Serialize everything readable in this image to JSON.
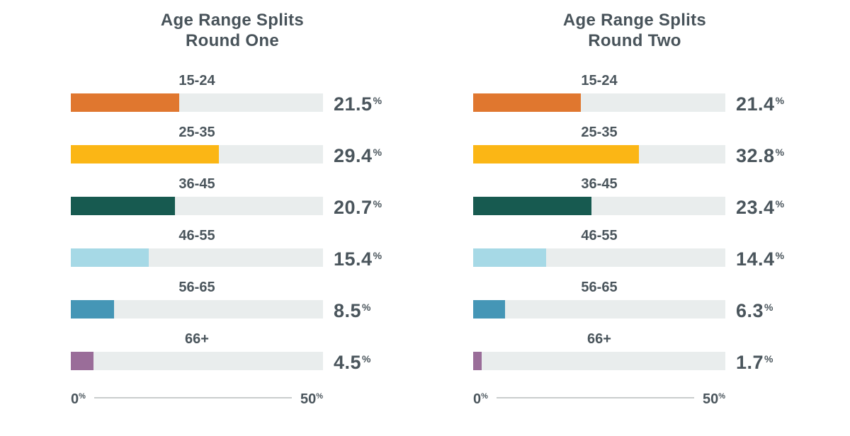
{
  "units": {
    "percent": "%"
  },
  "palette": {
    "text": "#48535A",
    "track": "#E9EDED",
    "axis_line": "#C9CDCD",
    "background": "#FFFFFF"
  },
  "chart_data": [
    {
      "type": "bar",
      "orientation": "horizontal",
      "title": "Age Range Splits",
      "subtitle": "Round One",
      "xlim": [
        0,
        50
      ],
      "grid": false,
      "categories": [
        "15-24",
        "25-35",
        "36-45",
        "46-55",
        "56-65",
        "66+"
      ],
      "values": [
        21.5,
        29.4,
        20.7,
        15.4,
        8.5,
        4.5
      ],
      "value_labels": [
        "21.5",
        "29.4",
        "20.7",
        "15.4",
        "8.5",
        "4.5"
      ],
      "bar_colors": [
        "#E0772F",
        "#FBB615",
        "#175A50",
        "#A6D9E6",
        "#4596B6",
        "#9A6D99"
      ],
      "track_color": "#E9EDED",
      "axis": {
        "min": "0",
        "max": "50",
        "unit": "%"
      }
    },
    {
      "type": "bar",
      "orientation": "horizontal",
      "title": "Age Range Splits",
      "subtitle": "Round Two",
      "xlim": [
        0,
        50
      ],
      "grid": false,
      "categories": [
        "15-24",
        "25-35",
        "36-45",
        "46-55",
        "56-65",
        "66+"
      ],
      "values": [
        21.4,
        32.8,
        23.4,
        14.4,
        6.3,
        1.7
      ],
      "value_labels": [
        "21.4",
        "32.8",
        "23.4",
        "14.4",
        "6.3",
        "1.7"
      ],
      "bar_colors": [
        "#E0772F",
        "#FBB615",
        "#175A50",
        "#A6D9E6",
        "#4596B6",
        "#9A6D99"
      ],
      "track_color": "#E9EDED",
      "axis": {
        "min": "0",
        "max": "50",
        "unit": "%"
      }
    }
  ]
}
